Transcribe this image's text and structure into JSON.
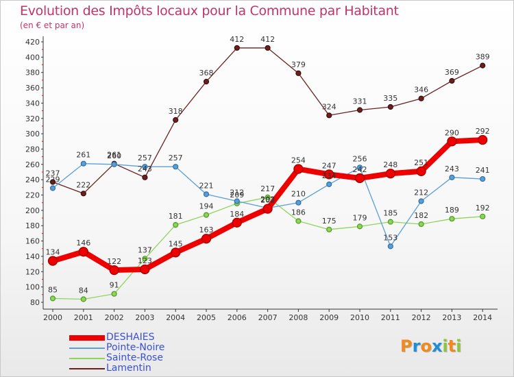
{
  "title": "Evolution des Impôts locaux pour la Commune par Habitant",
  "subtitle": "(en € et par an)",
  "logo": {
    "letters": [
      "P",
      "r",
      "o",
      "x",
      "i",
      "t",
      "i"
    ],
    "colors": [
      "#f08a1c",
      "#1f8ed6",
      "#f08a1c",
      "#1f8ed6",
      "#8cc63f",
      "#f08a1c",
      "#8cc63f"
    ]
  },
  "chart_data": {
    "type": "line",
    "title": "Evolution des Impôts locaux pour la Commune par Habitant",
    "subtitle": "(en € et par an)",
    "xlabel": "",
    "ylabel": "",
    "x": [
      "2000",
      "2001",
      "2002",
      "2003",
      "2004",
      "2005",
      "2006",
      "2007",
      "2008",
      "2009",
      "2010",
      "2011",
      "2012",
      "2013",
      "2014"
    ],
    "ylim": [
      80,
      420
    ],
    "yticks": [
      80,
      100,
      120,
      140,
      160,
      180,
      200,
      220,
      240,
      260,
      280,
      300,
      320,
      340,
      360,
      380,
      400,
      420
    ],
    "grid": false,
    "series": [
      {
        "name": "DESHAIES",
        "color": "#ee0000",
        "values": [
          134,
          146,
          122,
          123,
          145,
          163,
          184,
          202,
          254,
          247,
          242,
          248,
          251,
          290,
          292
        ]
      },
      {
        "name": "Pointe-Noire",
        "color": "#5a9ed6",
        "values": [
          229,
          261,
          260,
          257,
          257,
          221,
          212,
          203,
          210,
          234,
          256,
          153,
          212,
          243,
          241
        ]
      },
      {
        "name": "Sainte-Rose",
        "color": "#8fd45a",
        "values": [
          85,
          84,
          91,
          137,
          181,
          194,
          209,
          217,
          186,
          175,
          179,
          185,
          182,
          189,
          192
        ]
      },
      {
        "name": "Lamentin",
        "color": "#6b1f1f",
        "values": [
          237,
          222,
          261,
          243,
          318,
          368,
          412,
          412,
          379,
          324,
          331,
          335,
          346,
          369,
          389
        ]
      }
    ]
  }
}
